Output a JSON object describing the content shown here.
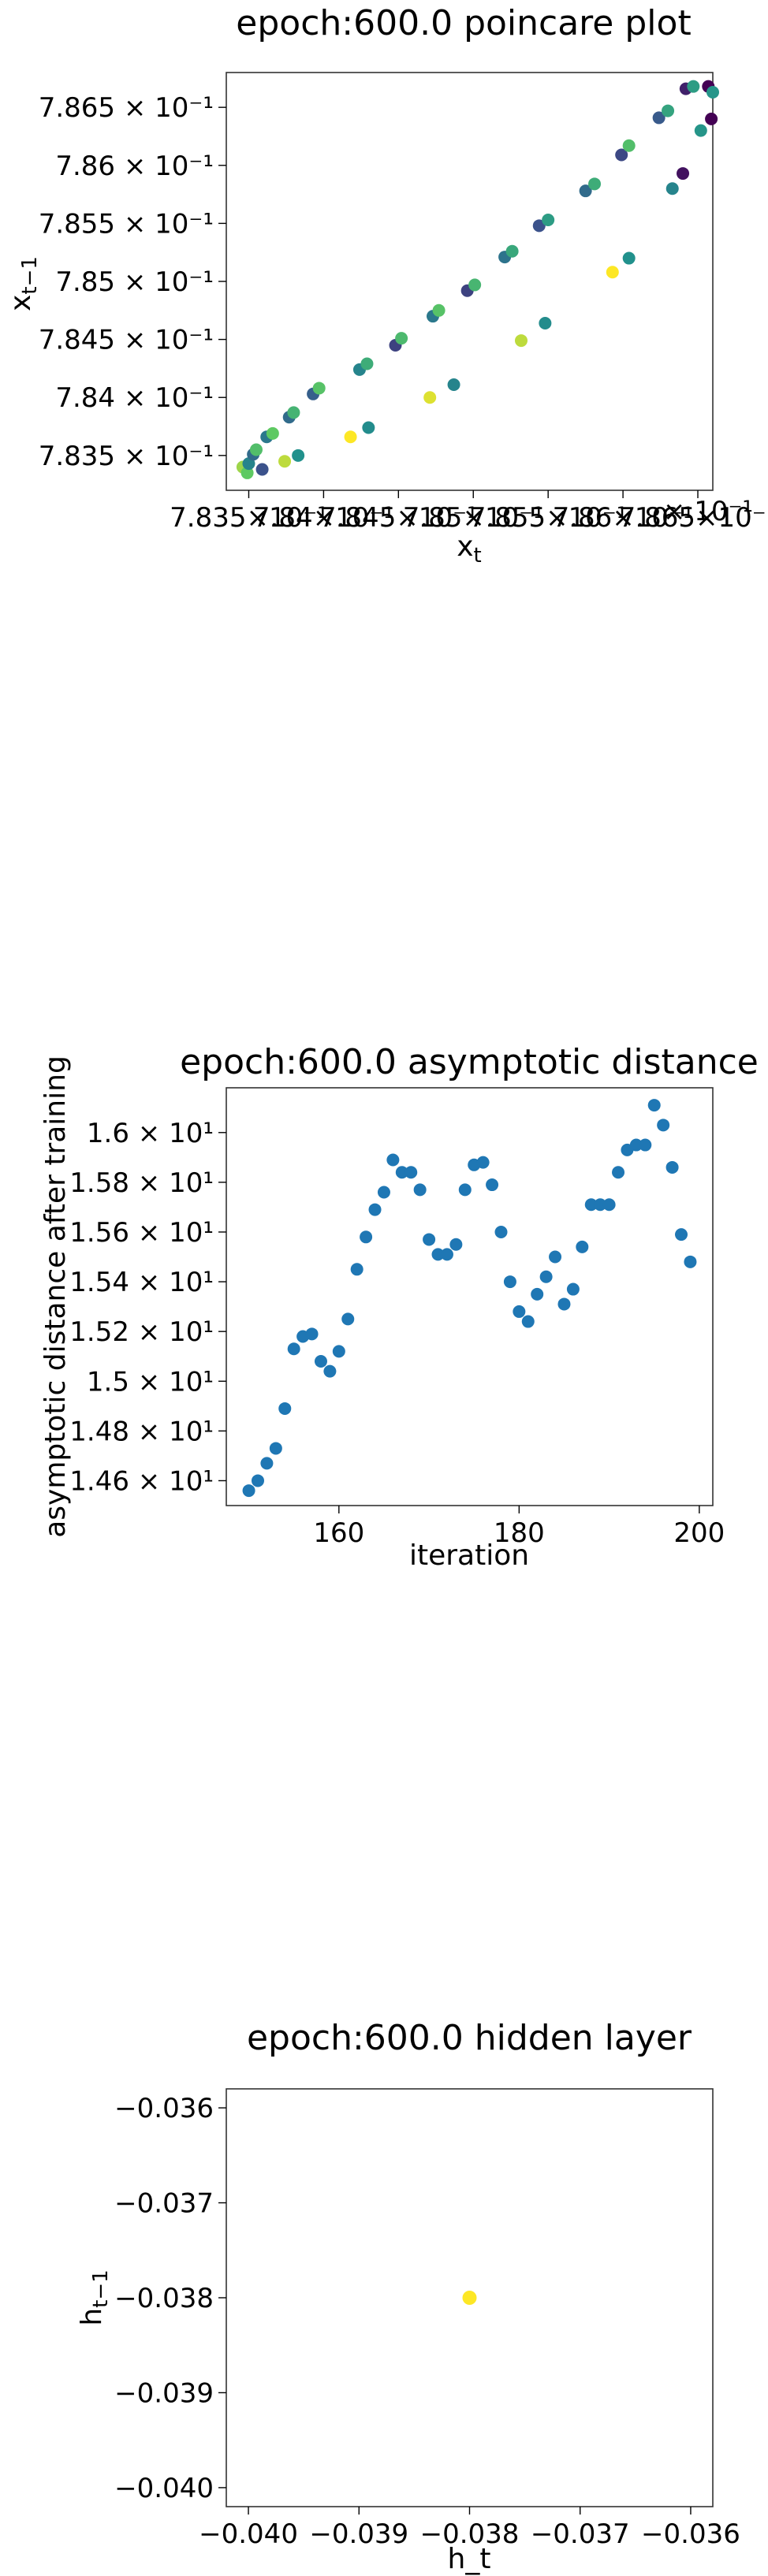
{
  "chart_data": [
    {
      "type": "scatter",
      "title": "epoch:600.0 poincare plot",
      "xlabel": "x",
      "xlabel_sub": "t",
      "ylabel": "x",
      "ylabel_sub": "t−1",
      "xlim": [
        0.78335,
        0.7866
      ],
      "ylim": [
        0.7832,
        0.7868
      ],
      "xticks": [
        {
          "value": 0.7835,
          "label": "7.835×10⁻¹"
        },
        {
          "value": 0.784,
          "label": "7.84×10⁻¹"
        },
        {
          "value": 0.7845,
          "label": "7.845×10⁻¹"
        },
        {
          "value": 0.785,
          "label": "7.85×10⁻¹"
        },
        {
          "value": 0.7855,
          "label": "7.855×10⁻¹"
        },
        {
          "value": 0.786,
          "label": "7.86×10⁻¹"
        },
        {
          "value": 0.7865,
          "label": "7.865×10⁻¹"
        }
      ],
      "xticks_tail": "× 10⁻¹",
      "yticks": [
        {
          "value": 0.7835,
          "label": "7.835 × 10⁻¹"
        },
        {
          "value": 0.784,
          "label": "7.84 × 10⁻¹"
        },
        {
          "value": 0.7845,
          "label": "7.845 × 10⁻¹"
        },
        {
          "value": 0.785,
          "label": "7.85 × 10⁻¹"
        },
        {
          "value": 0.7855,
          "label": "7.855 × 10⁻¹"
        },
        {
          "value": 0.786,
          "label": "7.86 × 10⁻¹"
        },
        {
          "value": 0.7865,
          "label": "7.865 × 10⁻¹"
        }
      ],
      "colormap": [
        "#440154",
        "#3b528b",
        "#21918c",
        "#5ec962",
        "#fde725"
      ],
      "points": [
        {
          "x": 0.78346,
          "y": 0.7834,
          "c": 0.85
        },
        {
          "x": 0.78349,
          "y": 0.78335,
          "c": 0.75
        },
        {
          "x": 0.7835,
          "y": 0.78343,
          "c": 0.45
        },
        {
          "x": 0.78353,
          "y": 0.78351,
          "c": 0.35
        },
        {
          "x": 0.78355,
          "y": 0.78355,
          "c": 0.7
        },
        {
          "x": 0.78359,
          "y": 0.78338,
          "c": 0.25
        },
        {
          "x": 0.78362,
          "y": 0.78366,
          "c": 0.4
        },
        {
          "x": 0.78366,
          "y": 0.78369,
          "c": 0.75
        },
        {
          "x": 0.78374,
          "y": 0.78345,
          "c": 0.9
        },
        {
          "x": 0.78377,
          "y": 0.78383,
          "c": 0.35
        },
        {
          "x": 0.7838,
          "y": 0.78387,
          "c": 0.65
        },
        {
          "x": 0.78383,
          "y": 0.7835,
          "c": 0.5
        },
        {
          "x": 0.78393,
          "y": 0.78403,
          "c": 0.3
        },
        {
          "x": 0.78397,
          "y": 0.78408,
          "c": 0.72
        },
        {
          "x": 0.78418,
          "y": 0.78366,
          "c": 1.0
        },
        {
          "x": 0.78424,
          "y": 0.78424,
          "c": 0.45
        },
        {
          "x": 0.78429,
          "y": 0.78429,
          "c": 0.62
        },
        {
          "x": 0.7843,
          "y": 0.78374,
          "c": 0.48
        },
        {
          "x": 0.78448,
          "y": 0.78445,
          "c": 0.2
        },
        {
          "x": 0.78452,
          "y": 0.78451,
          "c": 0.68
        },
        {
          "x": 0.78471,
          "y": 0.784,
          "c": 0.95
        },
        {
          "x": 0.78473,
          "y": 0.7847,
          "c": 0.4
        },
        {
          "x": 0.78477,
          "y": 0.78475,
          "c": 0.72
        },
        {
          "x": 0.78487,
          "y": 0.78411,
          "c": 0.45
        },
        {
          "x": 0.78496,
          "y": 0.78492,
          "c": 0.2
        },
        {
          "x": 0.78501,
          "y": 0.78497,
          "c": 0.66
        },
        {
          "x": 0.78521,
          "y": 0.78521,
          "c": 0.38
        },
        {
          "x": 0.78526,
          "y": 0.78526,
          "c": 0.6
        },
        {
          "x": 0.78532,
          "y": 0.78449,
          "c": 0.9
        },
        {
          "x": 0.78544,
          "y": 0.78548,
          "c": 0.25
        },
        {
          "x": 0.7855,
          "y": 0.78553,
          "c": 0.55
        },
        {
          "x": 0.78548,
          "y": 0.78464,
          "c": 0.48
        },
        {
          "x": 0.78575,
          "y": 0.78578,
          "c": 0.35
        },
        {
          "x": 0.78581,
          "y": 0.78584,
          "c": 0.62
        },
        {
          "x": 0.78593,
          "y": 0.78508,
          "c": 1.0
        },
        {
          "x": 0.78599,
          "y": 0.78609,
          "c": 0.22
        },
        {
          "x": 0.78604,
          "y": 0.78617,
          "c": 0.7
        },
        {
          "x": 0.78604,
          "y": 0.7852,
          "c": 0.5
        },
        {
          "x": 0.78624,
          "y": 0.78641,
          "c": 0.28
        },
        {
          "x": 0.7863,
          "y": 0.78647,
          "c": 0.58
        },
        {
          "x": 0.78633,
          "y": 0.7858,
          "c": 0.45
        },
        {
          "x": 0.7864,
          "y": 0.78593,
          "c": 0.05
        },
        {
          "x": 0.78642,
          "y": 0.78666,
          "c": 0.1
        },
        {
          "x": 0.78647,
          "y": 0.78668,
          "c": 0.55
        },
        {
          "x": 0.78652,
          "y": 0.7863,
          "c": 0.52
        },
        {
          "x": 0.78657,
          "y": 0.78668,
          "c": 0.0
        },
        {
          "x": 0.78659,
          "y": 0.7864,
          "c": 0.0
        },
        {
          "x": 0.7866,
          "y": 0.78663,
          "c": 0.52
        }
      ]
    },
    {
      "type": "scatter",
      "title": "epoch:600.0 asymptotic distance",
      "xlabel": "iteration",
      "ylabel": "asymptotic distance after training",
      "xlim": [
        147.5,
        201.5
      ],
      "ylim": [
        14.5,
        16.18
      ],
      "color": "#1f77b4",
      "xticks": [
        {
          "value": 160,
          "label": "160"
        },
        {
          "value": 180,
          "label": "180"
        },
        {
          "value": 200,
          "label": "200"
        }
      ],
      "yticks": [
        {
          "value": 14.6,
          "label": "1.46 × 10¹"
        },
        {
          "value": 14.8,
          "label": "1.48 × 10¹"
        },
        {
          "value": 15.0,
          "label": "1.5 × 10¹"
        },
        {
          "value": 15.2,
          "label": "1.52 × 10¹"
        },
        {
          "value": 15.4,
          "label": "1.54 × 10¹"
        },
        {
          "value": 15.6,
          "label": "1.56 × 10¹"
        },
        {
          "value": 15.8,
          "label": "1.58 × 10¹"
        },
        {
          "value": 16.0,
          "label": "1.6 × 10¹"
        }
      ],
      "x": [
        150,
        151,
        152,
        153,
        154,
        155,
        156,
        157,
        158,
        159,
        160,
        161,
        162,
        163,
        164,
        165,
        166,
        167,
        168,
        169,
        170,
        171,
        172,
        173,
        174,
        175,
        176,
        177,
        178,
        179,
        180,
        181,
        182,
        183,
        184,
        185,
        186,
        187,
        188,
        189,
        190,
        191,
        192,
        193,
        194,
        195,
        196,
        197,
        198,
        199
      ],
      "y": [
        14.56,
        14.6,
        14.67,
        14.73,
        14.89,
        15.13,
        15.18,
        15.19,
        15.08,
        15.04,
        15.12,
        15.25,
        15.45,
        15.58,
        15.69,
        15.76,
        15.89,
        15.84,
        15.84,
        15.77,
        15.57,
        15.51,
        15.51,
        15.55,
        15.77,
        15.87,
        15.88,
        15.79,
        15.6,
        15.4,
        15.28,
        15.24,
        15.35,
        15.42,
        15.5,
        15.31,
        15.37,
        15.54,
        15.71,
        15.71,
        15.71,
        15.84,
        15.93,
        15.95,
        15.95,
        16.11,
        16.03,
        15.86,
        15.59,
        15.48
      ]
    },
    {
      "type": "scatter",
      "title": "epoch:600.0 hidden layer",
      "xlabel": "h_t",
      "ylabel": "h",
      "ylabel_sub": "t−1",
      "xlim": [
        -0.0402,
        -0.0358
      ],
      "ylim": [
        -0.0402,
        -0.0358
      ],
      "xticks": [
        {
          "value": -0.04,
          "label": "−0.040"
        },
        {
          "value": -0.039,
          "label": "−0.039"
        },
        {
          "value": -0.038,
          "label": "−0.038"
        },
        {
          "value": -0.037,
          "label": "−0.037"
        },
        {
          "value": -0.036,
          "label": "−0.036"
        }
      ],
      "yticks": [
        {
          "value": -0.04,
          "label": "−0.040"
        },
        {
          "value": -0.039,
          "label": "−0.039"
        },
        {
          "value": -0.038,
          "label": "−0.038"
        },
        {
          "value": -0.037,
          "label": "−0.037"
        },
        {
          "value": -0.036,
          "label": "−0.036"
        }
      ],
      "points": [
        {
          "x": -0.038,
          "y": -0.038,
          "color": "#fde725"
        }
      ]
    }
  ]
}
